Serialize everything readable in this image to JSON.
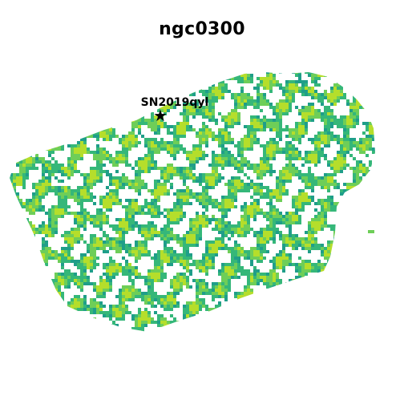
{
  "title": "ngc0300",
  "marker": {
    "label": "SN2019qyl",
    "symbol": "★"
  },
  "colormap": [
    "#1f9e89",
    "#35b779",
    "#6ece58",
    "#b5de2b"
  ]
}
